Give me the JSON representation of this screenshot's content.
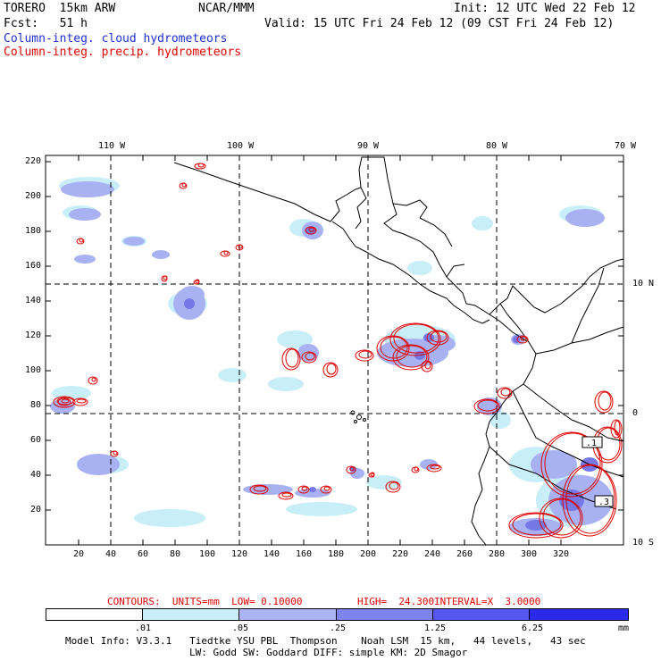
{
  "header": {
    "model": "TORERO  15km ARW",
    "org": "NCAR/MMM",
    "init": "Init: 12 UTC Wed 22 Feb 12",
    "fcst": "Fcst:   51 h",
    "valid": "Valid: 15 UTC Fri 24 Feb 12 (09 CST Fri 24 Feb 12)",
    "legend_cloud": "Column-integ. cloud hydrometeors",
    "legend_precip": "Column-integ. precip. hydrometeors"
  },
  "map": {
    "lon_labels": [
      "110 W",
      "100 W",
      "90 W",
      "80 W",
      "70 W"
    ],
    "lat_labels": [
      "10 N",
      "0",
      "10 S"
    ],
    "x_ticks": [
      "20",
      "40",
      "60",
      "80",
      "100",
      "120",
      "140",
      "160",
      "180",
      "200",
      "220",
      "240",
      "260",
      "280",
      "300",
      "320"
    ],
    "y_ticks": [
      "220",
      "200",
      "180",
      "160",
      "140",
      "120",
      "100",
      "80",
      "60",
      "40",
      "20"
    ],
    "box_labels": [
      ".1",
      ".3"
    ],
    "colors": {
      "coast": "#000000",
      "cloud_light": "#c8eef8",
      "cloud_mid": "#9aa8f0",
      "cloud_dark": "#6a6ee6",
      "precip": "#e00000"
    }
  },
  "contours": {
    "units": "CONTOURS:  UNITS=mm  LOW= 0.10000",
    "high": "HIGH=  24.300",
    "interval": "INTERVAL=X  3.0000"
  },
  "colorbar": {
    "labels": [
      ".01",
      ".05",
      ".25",
      "1.25",
      "6.25"
    ],
    "unit": "mm",
    "colors": [
      "#ffffff",
      "#c8eef8",
      "#a8b4f4",
      "#7f84ec",
      "#5557ee",
      "#2a2ae8"
    ]
  },
  "footer": {
    "line1": "Model Info: V3.3.1   Tiedtke YSU PBL  Thompson    Noah LSM  15 km,   44 levels,   43 sec",
    "line2": "LW: Godd SW: Goddard DIFF: simple KM: 2D Smagor"
  }
}
